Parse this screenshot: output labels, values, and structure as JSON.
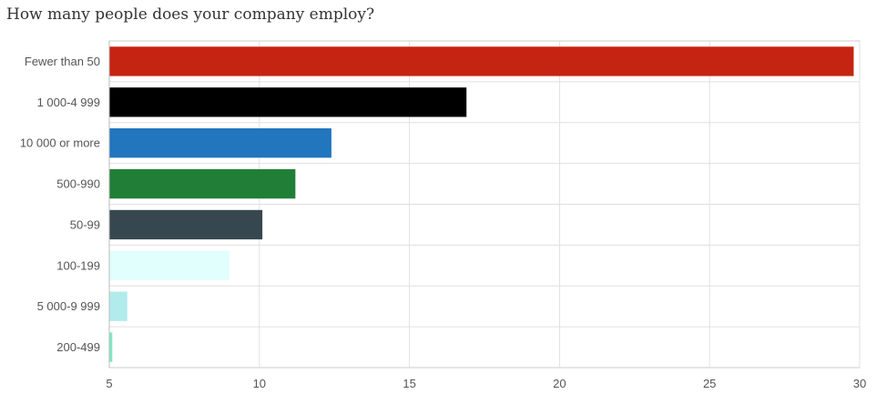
{
  "chart_data": {
    "type": "bar",
    "orientation": "horizontal",
    "title": "How many people does your company employ?",
    "xlabel": "",
    "ylabel": "",
    "categories": [
      "Fewer than 50",
      "1 000-4 999",
      "10 000 or more",
      "500-990",
      "50-99",
      "100-199",
      "5 000-9 999",
      "200-499"
    ],
    "values": [
      29.8,
      16.9,
      12.4,
      11.2,
      10.1,
      9.0,
      5.6,
      5.1
    ],
    "colors": [
      "#c62412",
      "#000000",
      "#2176bd",
      "#217e37",
      "#37474f",
      "#e0fffd",
      "#b2ebeb",
      "#7de8c4"
    ],
    "xlim": [
      5,
      30
    ],
    "xticks": [
      5,
      10,
      15,
      20,
      25,
      30
    ],
    "grid": true
  }
}
